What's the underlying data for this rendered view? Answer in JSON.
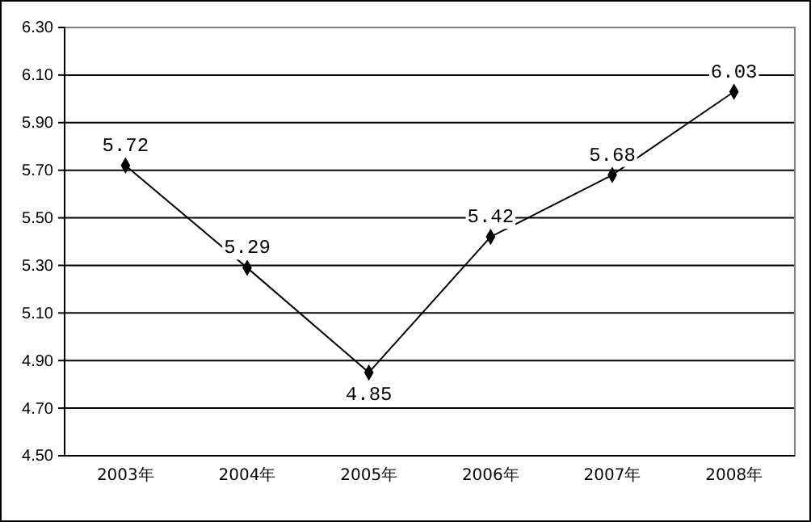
{
  "chart_data": {
    "type": "line",
    "categories": [
      "2003年",
      "2004年",
      "2005年",
      "2006年",
      "2007年",
      "2008年"
    ],
    "series": [
      {
        "color": "#000000",
        "values": [
          5.72,
          5.29,
          4.85,
          5.42,
          5.68,
          6.03
        ]
      }
    ],
    "ylim": [
      4.5,
      6.3
    ],
    "yticks": [
      {
        "value": 4.5,
        "label": "4.50"
      },
      {
        "value": 4.7,
        "label": "4.70"
      },
      {
        "value": 4.9,
        "label": "4.90"
      },
      {
        "value": 5.1,
        "label": "5.10"
      },
      {
        "value": 5.3,
        "label": "5.30"
      },
      {
        "value": 5.5,
        "label": "5.50"
      },
      {
        "value": 5.7,
        "label": "5.70"
      },
      {
        "value": 5.9,
        "label": "5.90"
      },
      {
        "value": 6.1,
        "label": "6.10"
      },
      {
        "value": 6.3,
        "label": "6.30"
      }
    ],
    "grid": "y",
    "marker": "diamond",
    "line_style": "solid",
    "data_labels": true
  }
}
